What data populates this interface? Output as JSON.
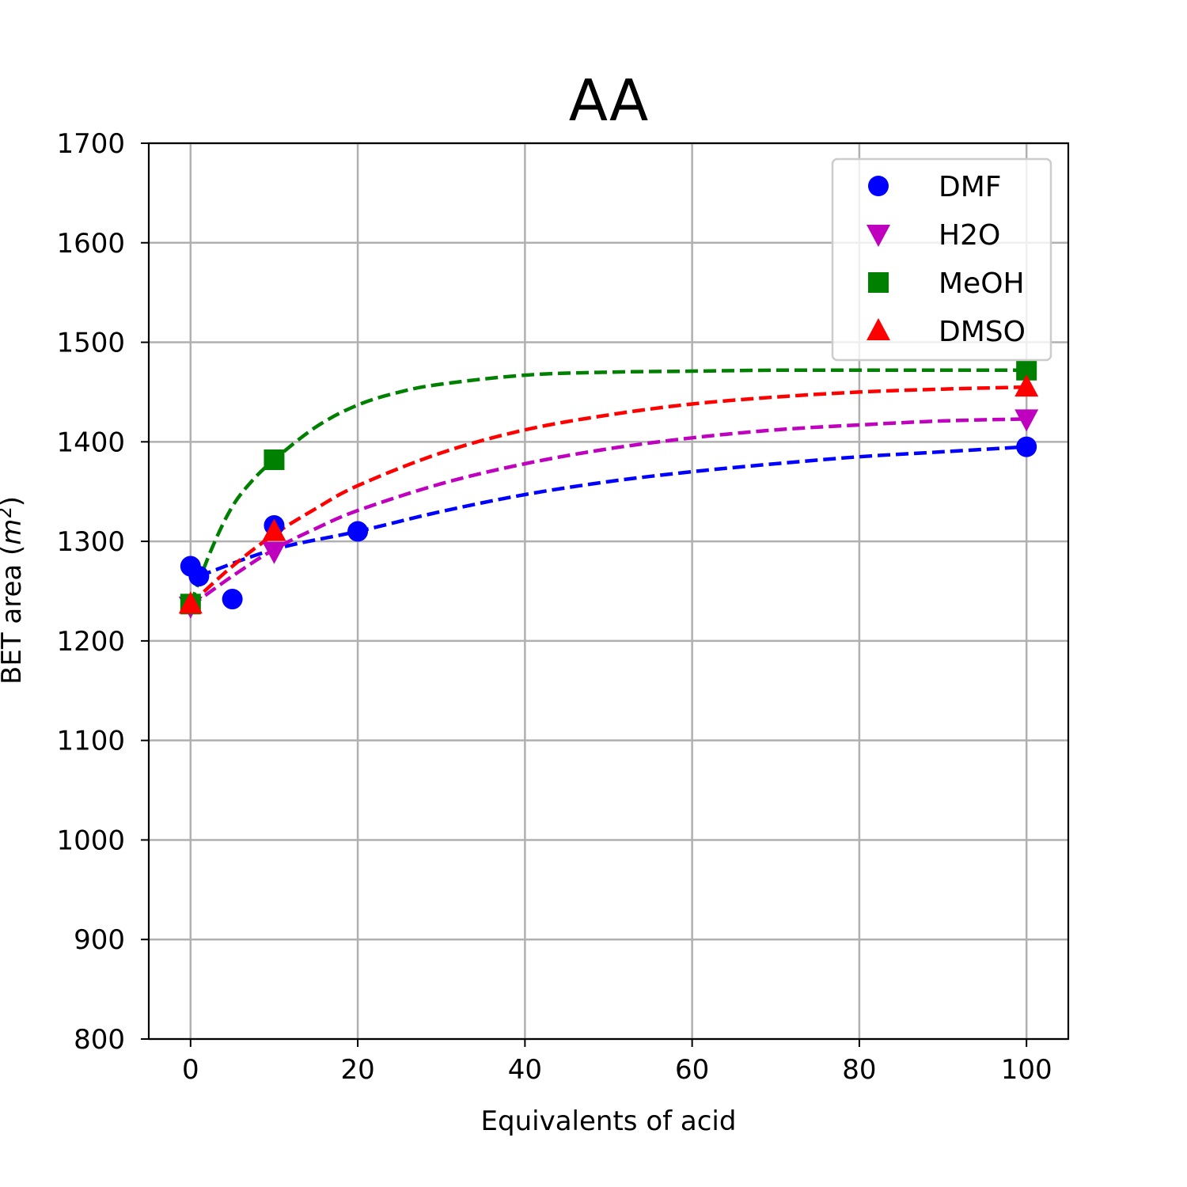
{
  "chart_data": {
    "type": "scatter",
    "title": "AA",
    "xlabel": "Equivalents of acid",
    "ylabel_main": "BET area (",
    "ylabel_italic": "m",
    "ylabel_sup": "2",
    "ylabel_close": ")",
    "xlim": [
      -5,
      105
    ],
    "ylim": [
      800,
      1700
    ],
    "xticks": [
      0,
      20,
      40,
      60,
      80,
      100
    ],
    "yticks": [
      800,
      900,
      1000,
      1100,
      1200,
      1300,
      1400,
      1500,
      1600,
      1700
    ],
    "grid": true,
    "legend_position": "top-right",
    "series": [
      {
        "name": "DMF",
        "color": "#0000ff",
        "marker": "circle",
        "points": [
          [
            0,
            1275
          ],
          [
            1,
            1265
          ],
          [
            5,
            1242
          ],
          [
            10,
            1316
          ],
          [
            20,
            1310
          ],
          [
            100,
            1395
          ]
        ],
        "fit": [
          [
            1,
            1265
          ],
          [
            10,
            1292
          ],
          [
            20,
            1310
          ],
          [
            30,
            1330
          ],
          [
            40,
            1347
          ],
          [
            50,
            1360
          ],
          [
            60,
            1370
          ],
          [
            70,
            1378
          ],
          [
            80,
            1385
          ],
          [
            90,
            1390
          ],
          [
            100,
            1395
          ]
        ]
      },
      {
        "name": "H2O",
        "color": "#bf00bf",
        "marker": "triangle-down",
        "points": [
          [
            0,
            1235
          ],
          [
            10,
            1290
          ],
          [
            100,
            1423
          ]
        ],
        "fit": [
          [
            0,
            1235
          ],
          [
            5,
            1265
          ],
          [
            10,
            1292
          ],
          [
            15,
            1313
          ],
          [
            20,
            1331
          ],
          [
            30,
            1358
          ],
          [
            40,
            1378
          ],
          [
            50,
            1393
          ],
          [
            60,
            1404
          ],
          [
            70,
            1412
          ],
          [
            80,
            1417
          ],
          [
            90,
            1421
          ],
          [
            100,
            1423
          ]
        ]
      },
      {
        "name": "MeOH",
        "color": "#008000",
        "marker": "square",
        "points": [
          [
            0,
            1237
          ],
          [
            10,
            1382
          ],
          [
            100,
            1472
          ]
        ],
        "fit": [
          [
            0,
            1237
          ],
          [
            2.5,
            1292
          ],
          [
            5,
            1335
          ],
          [
            7.5,
            1362
          ],
          [
            10,
            1382
          ],
          [
            15,
            1415
          ],
          [
            20,
            1437
          ],
          [
            25,
            1450
          ],
          [
            30,
            1458
          ],
          [
            40,
            1467
          ],
          [
            50,
            1470
          ],
          [
            60,
            1471
          ],
          [
            70,
            1472
          ],
          [
            80,
            1472
          ],
          [
            90,
            1472
          ],
          [
            100,
            1472
          ]
        ]
      },
      {
        "name": "DMSO",
        "color": "#ff0000",
        "marker": "triangle-up",
        "points": [
          [
            0,
            1237
          ],
          [
            10,
            1310
          ],
          [
            100,
            1455
          ]
        ],
        "fit": [
          [
            0,
            1237
          ],
          [
            5,
            1275
          ],
          [
            10,
            1307
          ],
          [
            15,
            1333
          ],
          [
            20,
            1356
          ],
          [
            30,
            1389
          ],
          [
            40,
            1412
          ],
          [
            50,
            1427
          ],
          [
            60,
            1438
          ],
          [
            70,
            1445
          ],
          [
            80,
            1450
          ],
          [
            90,
            1453
          ],
          [
            100,
            1455
          ]
        ]
      }
    ]
  }
}
